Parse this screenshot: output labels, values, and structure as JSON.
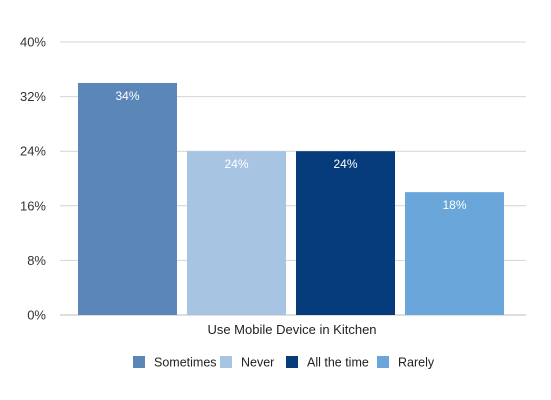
{
  "chart_data": {
    "type": "bar",
    "title": "",
    "xlabel": "Use Mobile Device in Kitchen",
    "ylabel": "",
    "ylim": [
      0,
      40
    ],
    "yticks": [
      0,
      8,
      16,
      24,
      32,
      40
    ],
    "ytick_labels": [
      "0%",
      "8%",
      "16%",
      "24%",
      "32%",
      "40%"
    ],
    "grid": true,
    "legend_position": "bottom",
    "series": [
      {
        "name": "Sometimes",
        "value": 34,
        "label": "34%",
        "color": "#5b87b8"
      },
      {
        "name": "Never",
        "value": 24,
        "label": "24%",
        "color": "#a7c5e2"
      },
      {
        "name": "All the time",
        "value": 24,
        "label": "24%",
        "color": "#063c7b"
      },
      {
        "name": "Rarely",
        "value": 18,
        "label": "18%",
        "color": "#6aa6d9"
      }
    ]
  }
}
